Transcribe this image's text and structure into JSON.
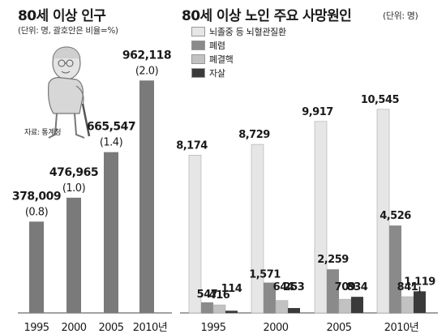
{
  "left_panel": {
    "title": "80세 이상 인구",
    "subtitle": "(단위: 명, 괄호안은 비율=%)",
    "source": "자료: 통계청"
  },
  "right_panel": {
    "title": "80세 이상 노인 주요 사망원인",
    "unit": "(단위: 명)"
  },
  "colors": {
    "population_bar": "#7a7a7a",
    "series": [
      "#e6e6e6",
      "#8a8a8a",
      "#c2c2c2",
      "#3a3a3a"
    ]
  },
  "chart_data": [
    {
      "type": "bar",
      "categories": [
        "1995",
        "2000",
        "2005",
        "2010년"
      ],
      "values": [
        378009,
        476965,
        665547,
        962118
      ],
      "value_labels": [
        "378,009",
        "476,965",
        "665,547",
        "962,118"
      ],
      "ratio_labels": [
        "(0.8)",
        "(1.0)",
        "(1.4)",
        "(2.0)"
      ],
      "ratios": [
        0.8,
        1.0,
        1.4,
        2.0
      ]
    },
    {
      "type": "bar",
      "categories": [
        "1995",
        "2000",
        "2005",
        "2010년"
      ],
      "series": [
        {
          "name": "뇌졸중 등 뇌혈관질환",
          "values": [
            8174,
            8729,
            9917,
            10545
          ],
          "labels": [
            "8,174",
            "8,729",
            "9,917",
            "10,545"
          ]
        },
        {
          "name": "폐렴",
          "values": [
            547,
            1571,
            2259,
            4526
          ],
          "labels": [
            "547",
            "1,571",
            "2,259",
            "4,526"
          ]
        },
        {
          "name": "폐결핵",
          "values": [
            416,
            644,
            709,
            841
          ],
          "labels": [
            "416",
            "644",
            "709",
            "841"
          ]
        },
        {
          "name": "자살",
          "values": [
            114,
            253,
            834,
            1119
          ],
          "labels": [
            "114",
            "253",
            "834",
            "1,119"
          ]
        }
      ]
    }
  ]
}
